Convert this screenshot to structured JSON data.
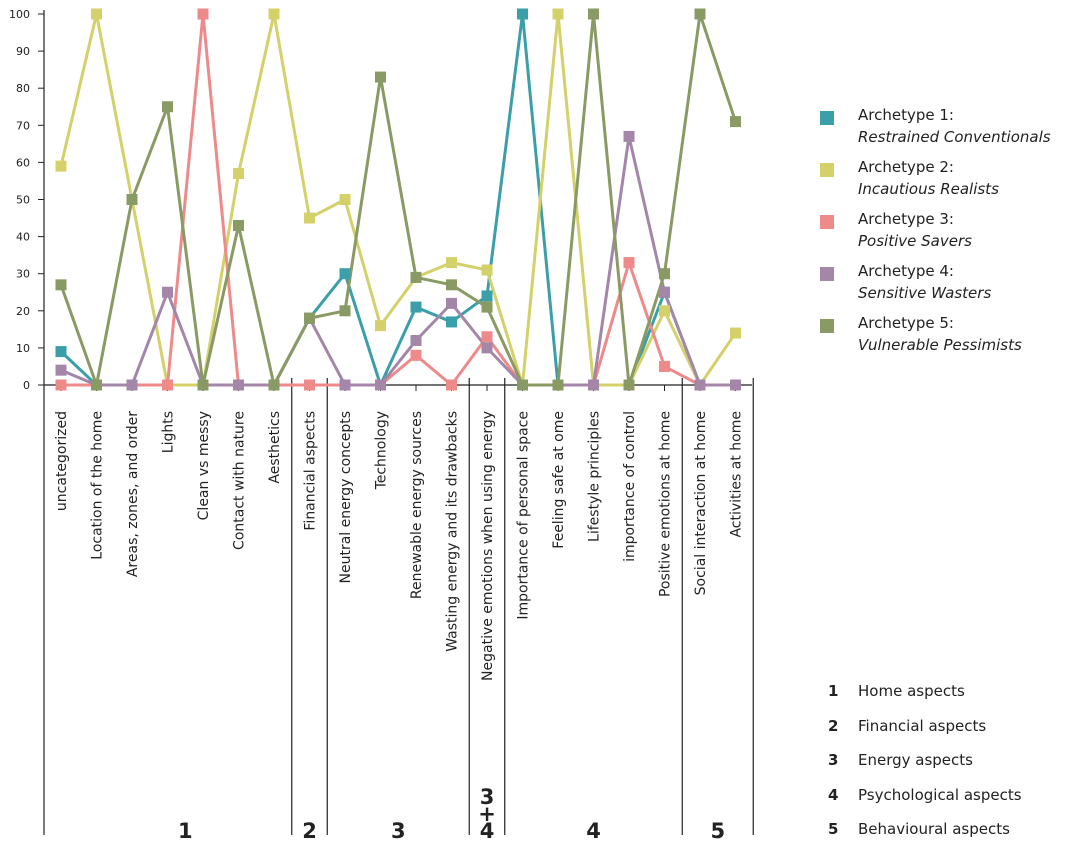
{
  "chart_data": {
    "type": "line",
    "categories": [
      "uncategorized",
      "Location of the home",
      "Areas, zones, and order",
      "Lights",
      "Clean vs messy",
      "Contact with nature",
      "Aesthetics",
      "Financial aspects",
      "Neutral energy concepts",
      "Technology",
      "Renewable energy sources",
      "Wasting energy and its drawbacks",
      "Negative emotions when using energy",
      "Importance of personal space",
      "Feeling safe at ome",
      "Lifestyle principles",
      "importance of control",
      "Positive emotions at home",
      "Social interaction at home",
      "Activities at home"
    ],
    "ylim": [
      0,
      100
    ],
    "yticks": [
      "0",
      "10",
      "20",
      "30",
      "40",
      "50",
      "60",
      "70",
      "80",
      "90",
      "100"
    ],
    "series": [
      {
        "name": "Archetype 1:",
        "description": "Restrained Conventionals",
        "color": "#3a9fa9",
        "values": [
          9,
          0,
          0,
          0,
          0,
          0,
          0,
          18,
          30,
          0,
          21,
          17,
          24,
          100,
          0,
          0,
          0,
          25,
          0,
          0
        ]
      },
      {
        "name": "Archetype 2:",
        "description": "Incautious Realists",
        "color": "#d4d06a",
        "values": [
          59,
          100,
          50,
          0,
          0,
          57,
          100,
          45,
          50,
          16,
          29,
          33,
          31,
          0,
          100,
          0,
          0,
          20,
          0,
          14
        ]
      },
      {
        "name": "Archetype 3:",
        "description": "Positive Savers",
        "color": "#ee8a8a",
        "values": [
          0,
          0,
          0,
          0,
          100,
          0,
          0,
          0,
          0,
          0,
          8,
          0,
          13,
          0,
          0,
          0,
          33,
          5,
          0,
          0
        ]
      },
      {
        "name": "Archetype 4:",
        "description": "Sensitive Wasters",
        "color": "#a486a8",
        "values": [
          4,
          0,
          0,
          25,
          0,
          0,
          0,
          18,
          0,
          0,
          12,
          22,
          10,
          0,
          0,
          0,
          67,
          25,
          0,
          0
        ]
      },
      {
        "name": "Archetype 5:",
        "description": "Vulnerable Pessimists",
        "color": "#8a9a64",
        "values": [
          27,
          0,
          50,
          75,
          0,
          43,
          0,
          18,
          20,
          83,
          29,
          27,
          21,
          0,
          0,
          100,
          0,
          30,
          100,
          71
        ]
      }
    ],
    "category_groups": [
      {
        "label": "1",
        "start": 1,
        "end": 6
      },
      {
        "label": "2",
        "start": 7,
        "end": 7
      },
      {
        "label": "3",
        "start": 8,
        "end": 11
      },
      {
        "label": "3\n+\n4",
        "start": 12,
        "end": 12
      },
      {
        "label": "4",
        "start": 13,
        "end": 17
      },
      {
        "label": "5",
        "start": 18,
        "end": 19
      }
    ],
    "group_legend": [
      {
        "num": "1",
        "label": "Home aspects"
      },
      {
        "num": "2",
        "label": "Financial aspects"
      },
      {
        "num": "3",
        "label": "Energy aspects"
      },
      {
        "num": "4",
        "label": "Psychological aspects"
      },
      {
        "num": "5",
        "label": "Behavioural aspects"
      }
    ],
    "legend_position": "right",
    "grid": false
  }
}
